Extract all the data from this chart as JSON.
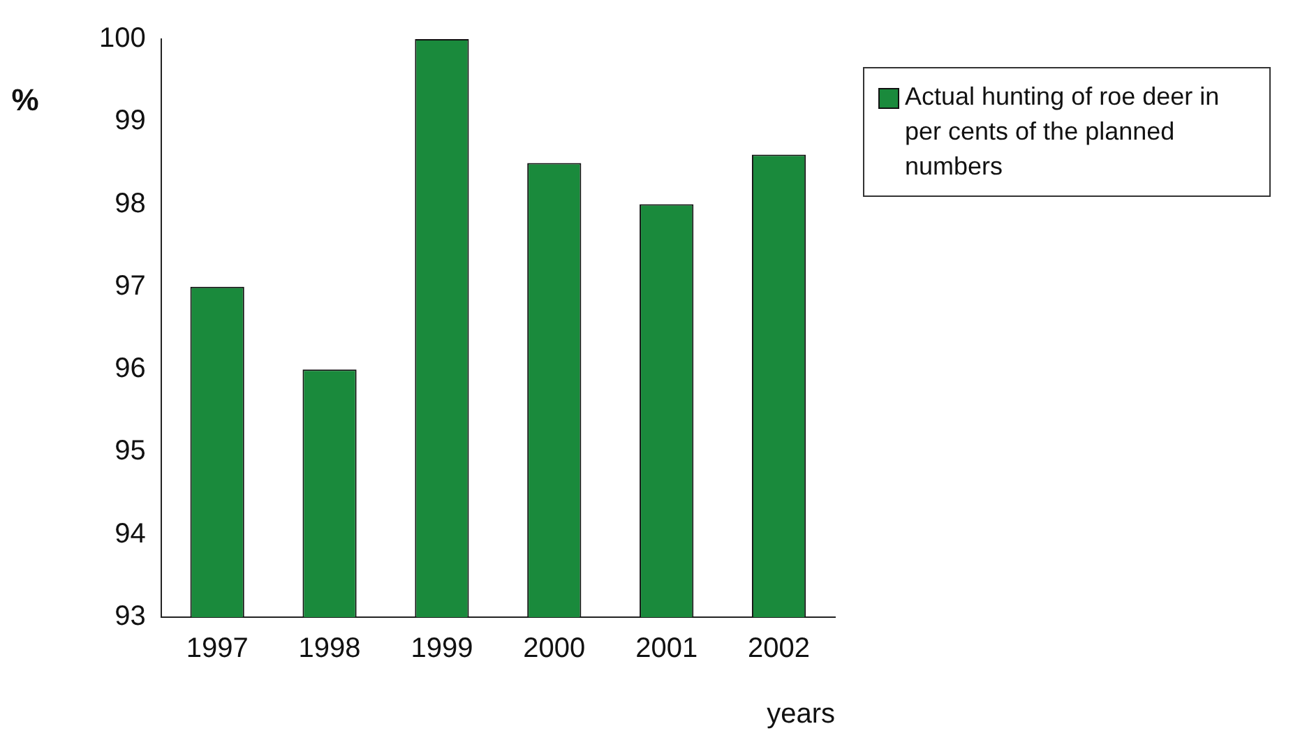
{
  "chart_data": {
    "type": "bar",
    "ylabel": "%",
    "xlabel": "years",
    "categories": [
      "1997",
      "1998",
      "1999",
      "2000",
      "2001",
      "2002"
    ],
    "series": [
      {
        "name": "Actual hunting of roe deer in per cents of the planned numbers",
        "color": "#1a8a3c",
        "values": [
          97,
          96,
          100,
          98.5,
          98,
          98.6
        ]
      }
    ],
    "ylim": [
      93,
      100
    ],
    "yticks": [
      93,
      94,
      95,
      96,
      97,
      98,
      99,
      100
    ],
    "grid": false,
    "legend": "top right"
  }
}
